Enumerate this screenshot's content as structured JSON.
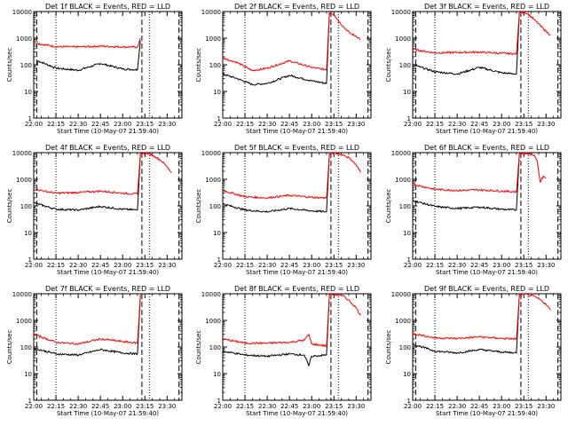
{
  "chart_data": [
    {
      "type": "line",
      "title": "Det 1f BLACK = Events, RED = LLD",
      "xlabel": "Start Time (10-May-07 21:59:40)",
      "ylabel": "Counts/sec",
      "x_ticks": [
        "22:00",
        "22:15",
        "22:30",
        "22:45",
        "23:00",
        "23:15",
        "23:30"
      ],
      "y_ticks": [
        "1",
        "10",
        "100",
        "1000",
        "10000"
      ],
      "ylim": [
        1,
        10000
      ],
      "y_scale": "log",
      "markers": {
        "dotted": [
          "22:15",
          "23:18"
        ],
        "dashed": [
          "22:02",
          "23:13",
          "23:38"
        ]
      },
      "series": [
        {
          "color": "#000000",
          "x": [
            "22:02",
            "22:03",
            "22:15",
            "22:30",
            "22:45",
            "23:00",
            "23:10",
            "23:12"
          ],
          "values": [
            95,
            140,
            75,
            62,
            112,
            70,
            65,
            800
          ]
        },
        {
          "color": "#ff0000",
          "x": [
            "22:02",
            "22:03",
            "22:15",
            "22:30",
            "22:45",
            "23:00",
            "23:10",
            "23:12"
          ],
          "values": [
            850,
            620,
            480,
            470,
            500,
            470,
            460,
            1000
          ]
        }
      ]
    },
    {
      "type": "line",
      "title": "Det 2f BLACK = Events, RED = LLD",
      "xlabel": "Start Time (10-May-07 21:59:40)",
      "ylabel": "Counts/sec",
      "x_ticks": [
        "22:00",
        "22:15",
        "22:30",
        "22:45",
        "23:00",
        "23:15",
        "23:30"
      ],
      "y_ticks": [
        "1",
        "10",
        "100",
        "1000",
        "10000"
      ],
      "ylim": [
        1,
        10000
      ],
      "y_scale": "log",
      "markers": {
        "dotted": [
          "22:15",
          "23:18"
        ],
        "dashed": [
          "23:13",
          "23:38"
        ]
      },
      "series": [
        {
          "color": "#000000",
          "x": [
            "22:00",
            "22:10",
            "22:20",
            "22:30",
            "22:45",
            "23:00",
            "23:10",
            "23:12"
          ],
          "values": [
            45,
            30,
            18,
            20,
            40,
            25,
            20,
            9000
          ]
        },
        {
          "color": "#ff0000",
          "x": [
            "22:00",
            "22:10",
            "22:20",
            "22:30",
            "22:45",
            "23:00",
            "23:10",
            "23:12",
            "23:15",
            "23:18",
            "23:22",
            "23:26",
            "23:30",
            "23:33"
          ],
          "values": [
            180,
            120,
            60,
            75,
            140,
            80,
            65,
            9000,
            8000,
            4500,
            2500,
            1500,
            1200,
            900
          ]
        }
      ]
    },
    {
      "type": "line",
      "title": "Det 3f BLACK = Events, RED = LLD",
      "xlabel": "Start Time (10-May-07 21:59:40)",
      "ylabel": "Counts/sec",
      "x_ticks": [
        "22:00",
        "22:15",
        "22:30",
        "22:45",
        "23:00",
        "23:15",
        "23:30"
      ],
      "y_ticks": [
        "1",
        "10",
        "100",
        "1000",
        "10000"
      ],
      "ylim": [
        1,
        10000
      ],
      "y_scale": "log",
      "markers": {
        "dotted": [
          "22:15",
          "23:18"
        ],
        "dashed": [
          "22:02",
          "23:13",
          "23:38"
        ]
      },
      "series": [
        {
          "color": "#000000",
          "x": [
            "22:00",
            "22:15",
            "22:30",
            "22:45",
            "23:00",
            "23:10",
            "23:12"
          ],
          "values": [
            100,
            55,
            45,
            80,
            50,
            45,
            9000
          ]
        },
        {
          "color": "#ff0000",
          "x": [
            "22:00",
            "22:15",
            "22:30",
            "22:45",
            "23:00",
            "23:10",
            "23:12",
            "23:15",
            "23:18",
            "23:22",
            "23:26",
            "23:30",
            "23:33"
          ],
          "values": [
            380,
            280,
            290,
            300,
            270,
            260,
            9000,
            9500,
            8000,
            5000,
            3000,
            1800,
            1300
          ]
        }
      ]
    },
    {
      "type": "line",
      "title": "Det 4f BLACK = Events, RED = LLD",
      "xlabel": "Start Time (10-May-07 21:59:40)",
      "ylabel": "Counts/sec",
      "x_ticks": [
        "22:00",
        "22:15",
        "22:30",
        "22:45",
        "23:00",
        "23:15",
        "23:30"
      ],
      "y_ticks": [
        "1",
        "10",
        "100",
        "1000",
        "10000"
      ],
      "ylim": [
        1,
        10000
      ],
      "y_scale": "log",
      "markers": {
        "dotted": [
          "22:15",
          "23:18"
        ],
        "dashed": [
          "22:02",
          "23:13",
          "23:38"
        ]
      },
      "series": [
        {
          "color": "#000000",
          "x": [
            "22:00",
            "22:15",
            "22:30",
            "22:45",
            "23:00",
            "23:10",
            "23:12"
          ],
          "values": [
            130,
            75,
            70,
            95,
            75,
            70,
            9000
          ]
        },
        {
          "color": "#ff0000",
          "x": [
            "22:00",
            "22:15",
            "22:30",
            "22:45",
            "23:00",
            "23:10",
            "23:12",
            "23:15",
            "23:18",
            "23:22",
            "23:26",
            "23:30",
            "23:33"
          ],
          "values": [
            430,
            300,
            320,
            360,
            300,
            280,
            9000,
            9500,
            9000,
            7000,
            5000,
            3000,
            1800
          ]
        }
      ]
    },
    {
      "type": "line",
      "title": "Det 5f BLACK = Events, RED = LLD",
      "xlabel": "Start Time (10-May-07 21:59:40)",
      "ylabel": "Counts/sec",
      "x_ticks": [
        "22:00",
        "22:15",
        "22:30",
        "22:45",
        "23:00",
        "23:15",
        "23:30"
      ],
      "y_ticks": [
        "1",
        "10",
        "100",
        "1000",
        "10000"
      ],
      "ylim": [
        1,
        10000
      ],
      "y_scale": "log",
      "markers": {
        "dotted": [
          "22:15",
          "23:18"
        ],
        "dashed": [
          "23:13",
          "23:38"
        ]
      },
      "series": [
        {
          "color": "#000000",
          "x": [
            "22:00",
            "22:15",
            "22:30",
            "22:45",
            "23:00",
            "23:10",
            "23:12"
          ],
          "values": [
            120,
            70,
            60,
            80,
            65,
            60,
            9000
          ]
        },
        {
          "color": "#ff0000",
          "x": [
            "22:00",
            "22:15",
            "22:30",
            "22:45",
            "23:00",
            "23:10",
            "23:12",
            "23:15",
            "23:18",
            "23:22",
            "23:26",
            "23:30",
            "23:33"
          ],
          "values": [
            380,
            220,
            200,
            250,
            210,
            200,
            9000,
            9500,
            9000,
            8000,
            6000,
            3500,
            1800
          ]
        }
      ]
    },
    {
      "type": "line",
      "title": "Det 6f BLACK = Events, RED = LLD",
      "xlabel": "Start Time (10-May-07 21:59:40)",
      "ylabel": "Counts/sec",
      "x_ticks": [
        "22:00",
        "22:15",
        "22:30",
        "22:45",
        "23:00",
        "23:15",
        "23:30"
      ],
      "y_ticks": [
        "1",
        "10",
        "100",
        "1000",
        "10000"
      ],
      "ylim": [
        1,
        10000
      ],
      "y_scale": "log",
      "markers": {
        "dotted": [
          "22:15",
          "23:18"
        ],
        "dashed": [
          "22:02",
          "23:13",
          "23:38"
        ]
      },
      "series": [
        {
          "color": "#000000",
          "x": [
            "22:00",
            "22:15",
            "22:30",
            "22:45",
            "23:00",
            "23:10",
            "23:12"
          ],
          "values": [
            160,
            95,
            80,
            90,
            75,
            70,
            9000
          ]
        },
        {
          "color": "#ff0000",
          "x": [
            "22:00",
            "22:15",
            "22:30",
            "22:45",
            "23:00",
            "23:10",
            "23:12",
            "23:15",
            "23:18",
            "23:22",
            "23:24",
            "23:26",
            "23:28",
            "23:30"
          ],
          "values": [
            650,
            420,
            380,
            400,
            360,
            340,
            9000,
            9500,
            9000,
            8000,
            5000,
            800,
            1300,
            1100
          ]
        }
      ]
    },
    {
      "type": "line",
      "title": "Det 7f BLACK = Events, RED = LLD",
      "xlabel": "Start Time (10-May-07 21:59:40)",
      "ylabel": "Counts/sec",
      "x_ticks": [
        "22:00",
        "22:15",
        "22:30",
        "22:45",
        "23:00",
        "23:15",
        "23:30"
      ],
      "y_ticks": [
        "1",
        "10",
        "100",
        "1000",
        "10000"
      ],
      "ylim": [
        1,
        10000
      ],
      "y_scale": "log",
      "markers": {
        "dotted": [
          "22:15",
          "23:18"
        ],
        "dashed": [
          "22:02",
          "23:13",
          "23:38"
        ]
      },
      "series": [
        {
          "color": "#000000",
          "x": [
            "22:00",
            "22:15",
            "22:30",
            "22:45",
            "23:00",
            "23:10",
            "23:12"
          ],
          "values": [
            90,
            55,
            50,
            80,
            60,
            55,
            9000
          ]
        },
        {
          "color": "#ff0000",
          "x": [
            "22:00",
            "22:15",
            "22:30",
            "22:45",
            "23:00",
            "23:10",
            "23:12"
          ],
          "values": [
            300,
            150,
            130,
            200,
            160,
            140,
            9000
          ]
        }
      ]
    },
    {
      "type": "line",
      "title": "Det 8f BLACK = Events, RED = LLD",
      "xlabel": "Start Time (10-May-07 21:59:40)",
      "ylabel": "Counts/sec",
      "x_ticks": [
        "22:00",
        "22:15",
        "22:30",
        "22:45",
        "23:00",
        "23:15",
        "23:30"
      ],
      "y_ticks": [
        "1",
        "10",
        "100",
        "1000",
        "10000"
      ],
      "ylim": [
        1,
        10000
      ],
      "y_scale": "log",
      "markers": {
        "dotted": [
          "22:15",
          "23:18"
        ],
        "dashed": [
          "23:13",
          "23:38"
        ]
      },
      "series": [
        {
          "color": "#000000",
          "x": [
            "22:00",
            "22:15",
            "22:30",
            "22:45",
            "22:55",
            "22:58",
            "23:00",
            "23:10",
            "23:12"
          ],
          "values": [
            70,
            50,
            45,
            55,
            50,
            20,
            45,
            50,
            9000
          ]
        },
        {
          "color": "#ff0000",
          "x": [
            "22:00",
            "22:15",
            "22:30",
            "22:45",
            "22:55",
            "22:58",
            "23:00",
            "23:10",
            "23:12",
            "23:15",
            "23:18",
            "23:22",
            "23:26",
            "23:30",
            "23:33"
          ],
          "values": [
            200,
            140,
            140,
            150,
            180,
            300,
            130,
            110,
            9000,
            9500,
            9000,
            8000,
            5000,
            3000,
            1500
          ]
        }
      ]
    },
    {
      "type": "line",
      "title": "Det 9f BLACK = Events, RED = LLD",
      "xlabel": "Start Time (10-May-07 21:59:40)",
      "ylabel": "Counts/sec",
      "x_ticks": [
        "22:00",
        "22:15",
        "22:30",
        "22:45",
        "23:00",
        "23:15",
        "23:30"
      ],
      "y_ticks": [
        "1",
        "10",
        "100",
        "1000",
        "10000"
      ],
      "ylim": [
        1,
        10000
      ],
      "y_scale": "log",
      "markers": {
        "dotted": [
          "22:15",
          "23:18"
        ],
        "dashed": [
          "22:02",
          "23:13",
          "23:38"
        ]
      },
      "series": [
        {
          "color": "#000000",
          "x": [
            "22:00",
            "22:15",
            "22:30",
            "22:45",
            "23:00",
            "23:10",
            "23:12"
          ],
          "values": [
            130,
            70,
            60,
            80,
            65,
            60,
            9000
          ]
        },
        {
          "color": "#ff0000",
          "x": [
            "22:00",
            "22:15",
            "22:30",
            "22:45",
            "23:00",
            "23:10",
            "23:12",
            "23:15",
            "23:18",
            "23:22",
            "23:26",
            "23:30",
            "23:33"
          ],
          "values": [
            320,
            220,
            210,
            240,
            210,
            200,
            9000,
            9500,
            9000,
            8000,
            6000,
            4000,
            2500
          ]
        }
      ]
    }
  ]
}
